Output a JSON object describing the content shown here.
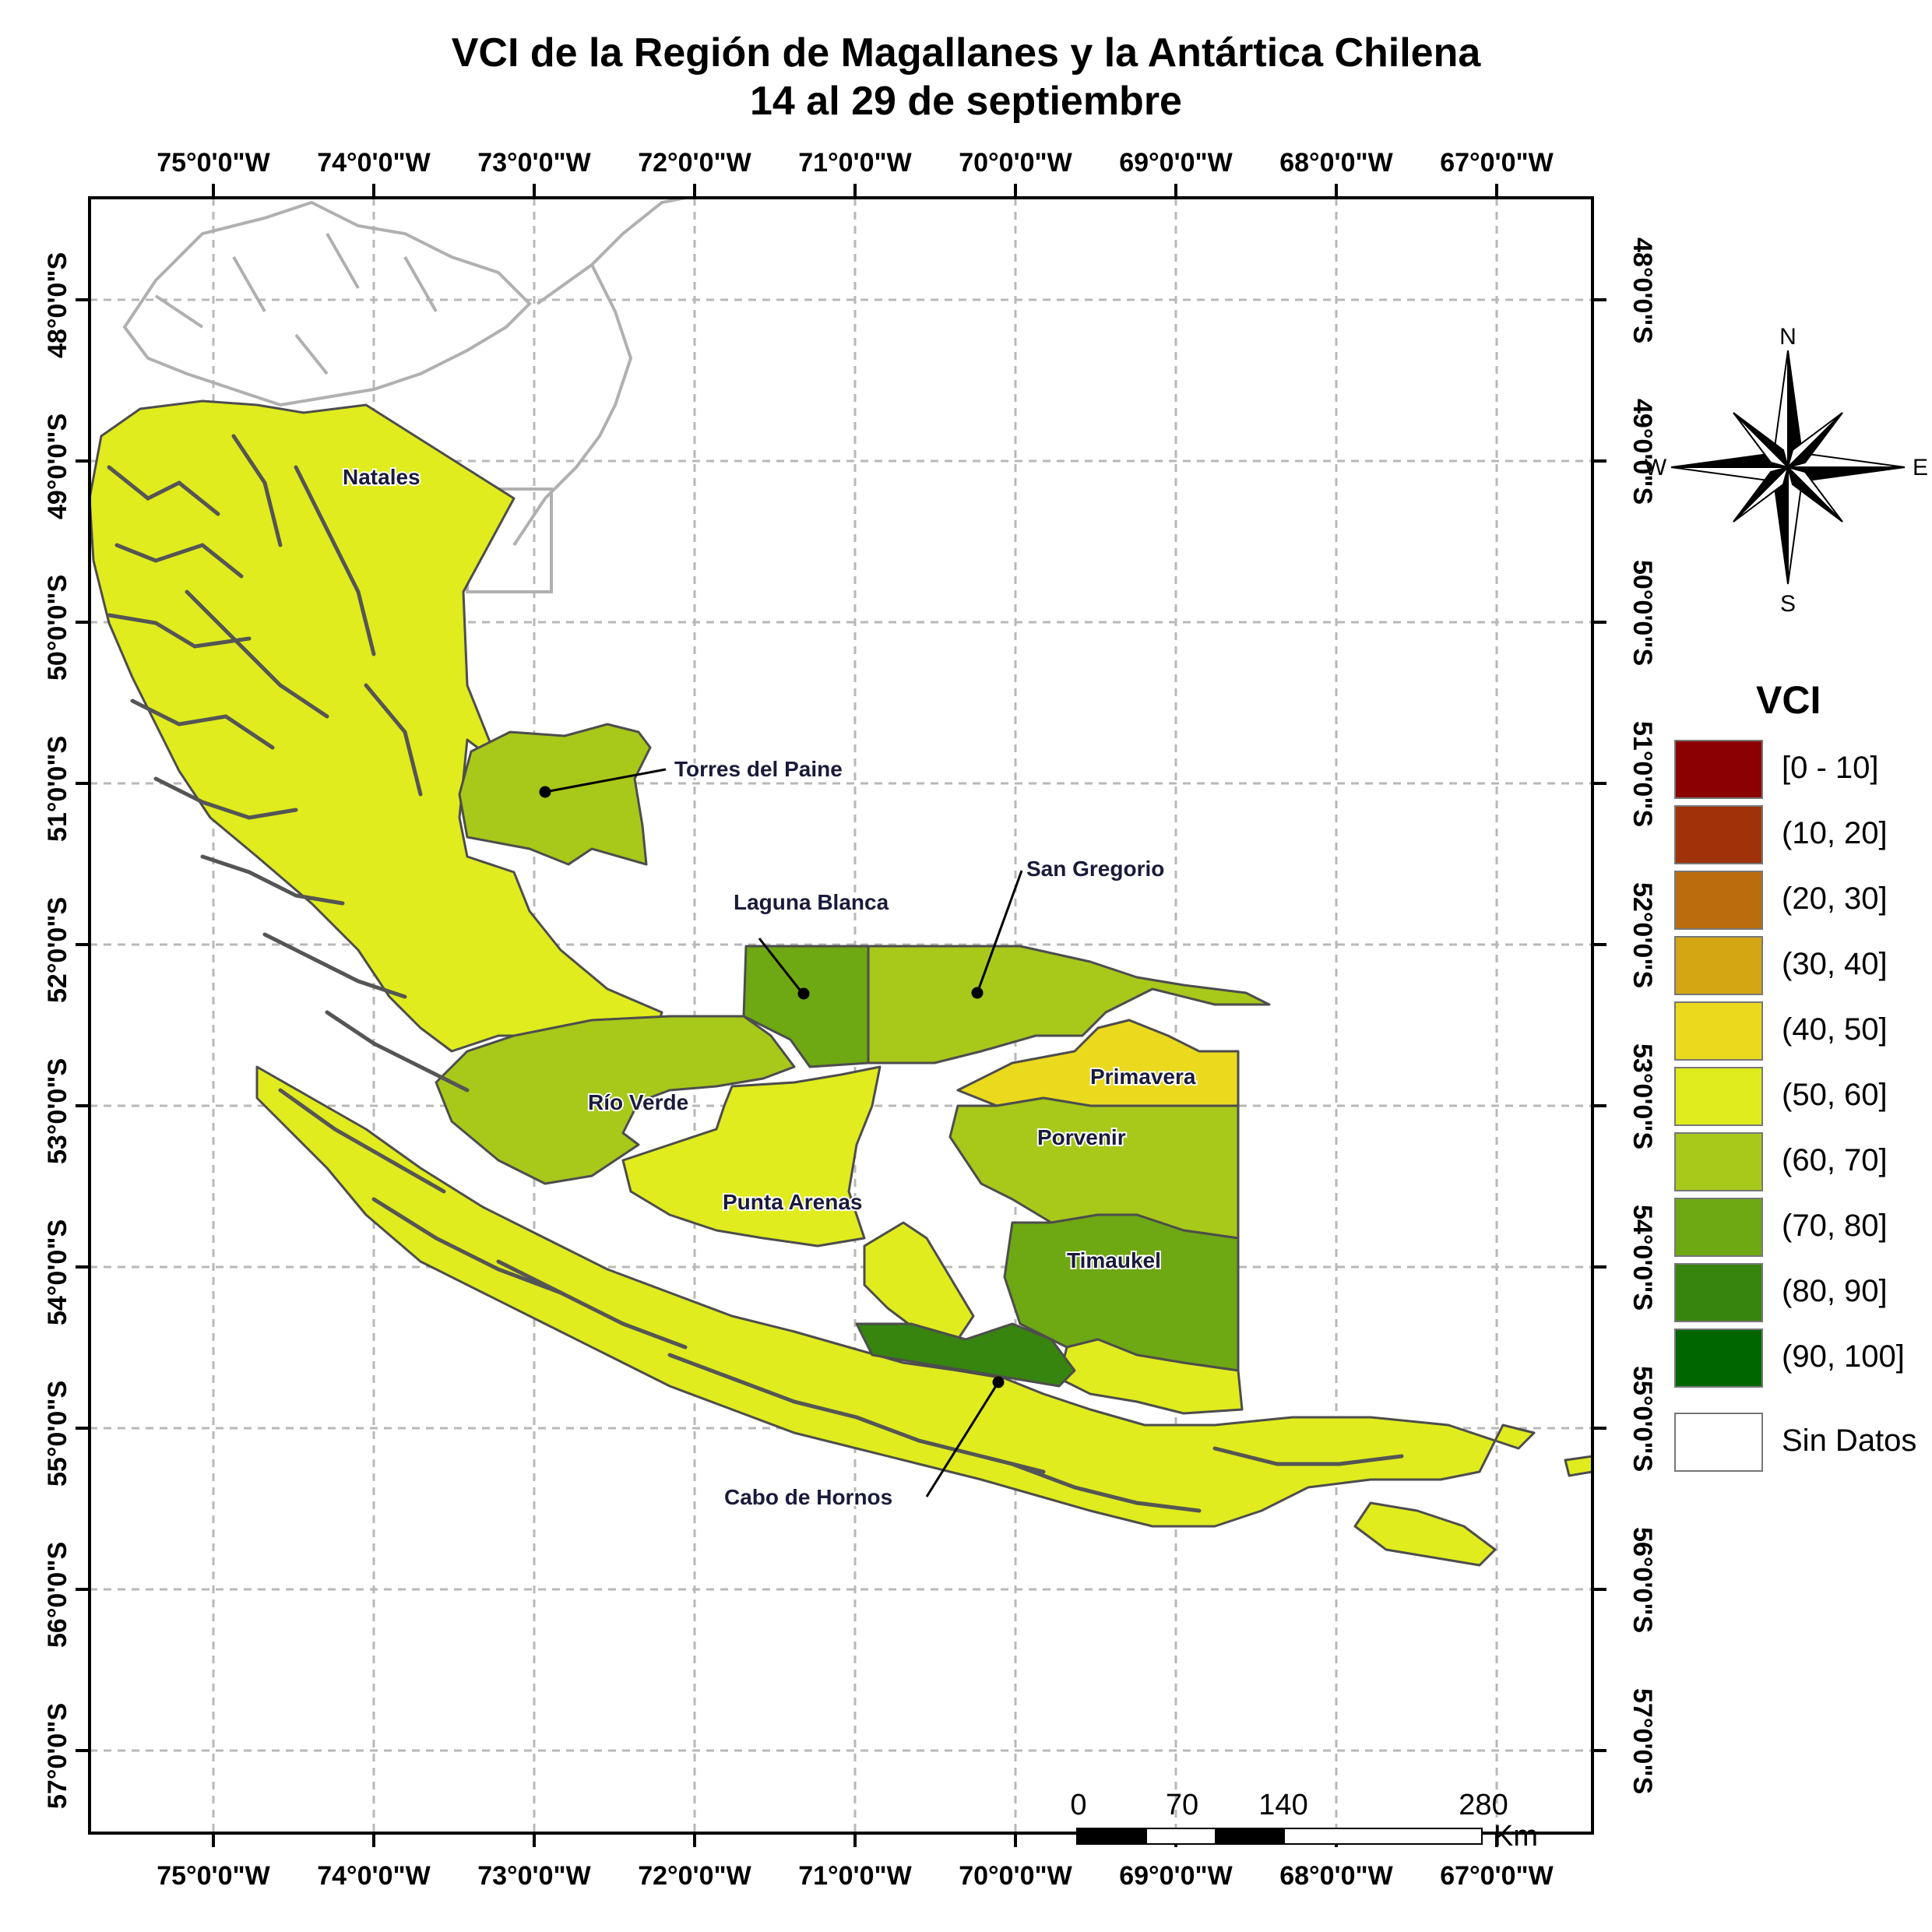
{
  "title_line1": "VCI de la Región de Magallanes y la Antártica Chilena",
  "title_line2": "14 al 29 de septiembre",
  "longitude_labels": [
    "75°0'0\"W",
    "74°0'0\"W",
    "73°0'0\"W",
    "72°0'0\"W",
    "71°0'0\"W",
    "70°0'0\"W",
    "69°0'0\"W",
    "68°0'0\"W",
    "67°0'0\"W"
  ],
  "latitude_labels": [
    "48°0'0\"S",
    "49°0'0\"S",
    "50°0'0\"S",
    "51°0'0\"S",
    "52°0'0\"S",
    "53°0'0\"S",
    "54°0'0\"S",
    "55°0'0\"S",
    "56°0'0\"S",
    "57°0'0\"S"
  ],
  "communes": {
    "natales": "Natales",
    "torres_del_paine": "Torres del Paine",
    "laguna_blanca": "Laguna Blanca",
    "san_gregorio": "San Gregorio",
    "primavera": "Primavera",
    "rio_verde": "Río Verde",
    "porvenir": "Porvenir",
    "punta_arenas": "Punta Arenas",
    "timaukel": "Timaukel",
    "cabo_de_hornos": "Cabo de Hornos"
  },
  "compass": {
    "north": "N",
    "south": "S",
    "east": "E",
    "west": "W"
  },
  "legend": {
    "title": "VCI",
    "items": [
      {
        "label": "[0 - 10]",
        "color": "#8b0000"
      },
      {
        "label": "(10, 20]",
        "color": "#a0320a"
      },
      {
        "label": "(20, 30]",
        "color": "#bb6c0c"
      },
      {
        "label": "(30, 40]",
        "color": "#d4a614"
      },
      {
        "label": "(40, 50]",
        "color": "#ebd91e"
      },
      {
        "label": "(50, 60]",
        "color": "#e0ec1d"
      },
      {
        "label": "(60, 70]",
        "color": "#a8c81a"
      },
      {
        "label": "(70, 80]",
        "color": "#6ea812"
      },
      {
        "label": "(80, 90]",
        "color": "#37840f"
      },
      {
        "label": "(90, 100]",
        "color": "#006600"
      }
    ],
    "no_data_label": "Sin Datos"
  },
  "scale_bar": {
    "labels": [
      "0",
      "70",
      "140",
      "280"
    ],
    "unit": "Km"
  }
}
